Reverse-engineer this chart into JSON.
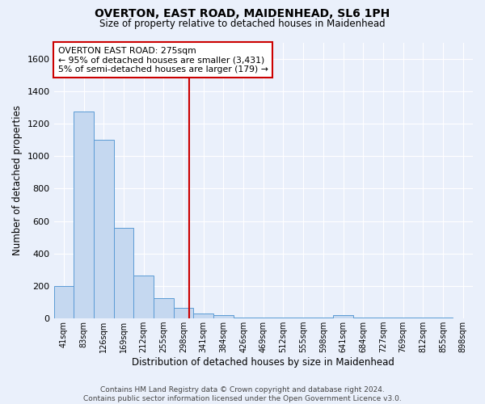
{
  "title": "OVERTON, EAST ROAD, MAIDENHEAD, SL6 1PH",
  "subtitle": "Size of property relative to detached houses in Maidenhead",
  "xlabel": "Distribution of detached houses by size in Maidenhead",
  "ylabel": "Number of detached properties",
  "footer_line1": "Contains HM Land Registry data © Crown copyright and database right 2024.",
  "footer_line2": "Contains public sector information licensed under the Open Government Licence v3.0.",
  "categories": [
    "41sqm",
    "83sqm",
    "126sqm",
    "169sqm",
    "212sqm",
    "255sqm",
    "298sqm",
    "341sqm",
    "384sqm",
    "426sqm",
    "469sqm",
    "512sqm",
    "555sqm",
    "598sqm",
    "641sqm",
    "684sqm",
    "727sqm",
    "769sqm",
    "812sqm",
    "855sqm",
    "898sqm"
  ],
  "bar_heights": [
    200,
    1275,
    1100,
    560,
    265,
    125,
    65,
    30,
    20,
    5,
    5,
    5,
    5,
    5,
    20,
    5,
    5,
    5,
    5,
    5,
    0
  ],
  "bar_color": "#c5d8f0",
  "bar_edge_color": "#5b9bd5",
  "ylim": [
    0,
    1700
  ],
  "yticks": [
    0,
    200,
    400,
    600,
    800,
    1000,
    1200,
    1400,
    1600
  ],
  "vline_color": "#cc0000",
  "annotation_text": "OVERTON EAST ROAD: 275sqm\n← 95% of detached houses are smaller (3,431)\n5% of semi-detached houses are larger (179) →",
  "annotation_box_color": "#ffffff",
  "annotation_box_edge": "#cc0000",
  "background_color": "#eaf0fb",
  "grid_color": "#ffffff",
  "property_vline_position": 6.27
}
